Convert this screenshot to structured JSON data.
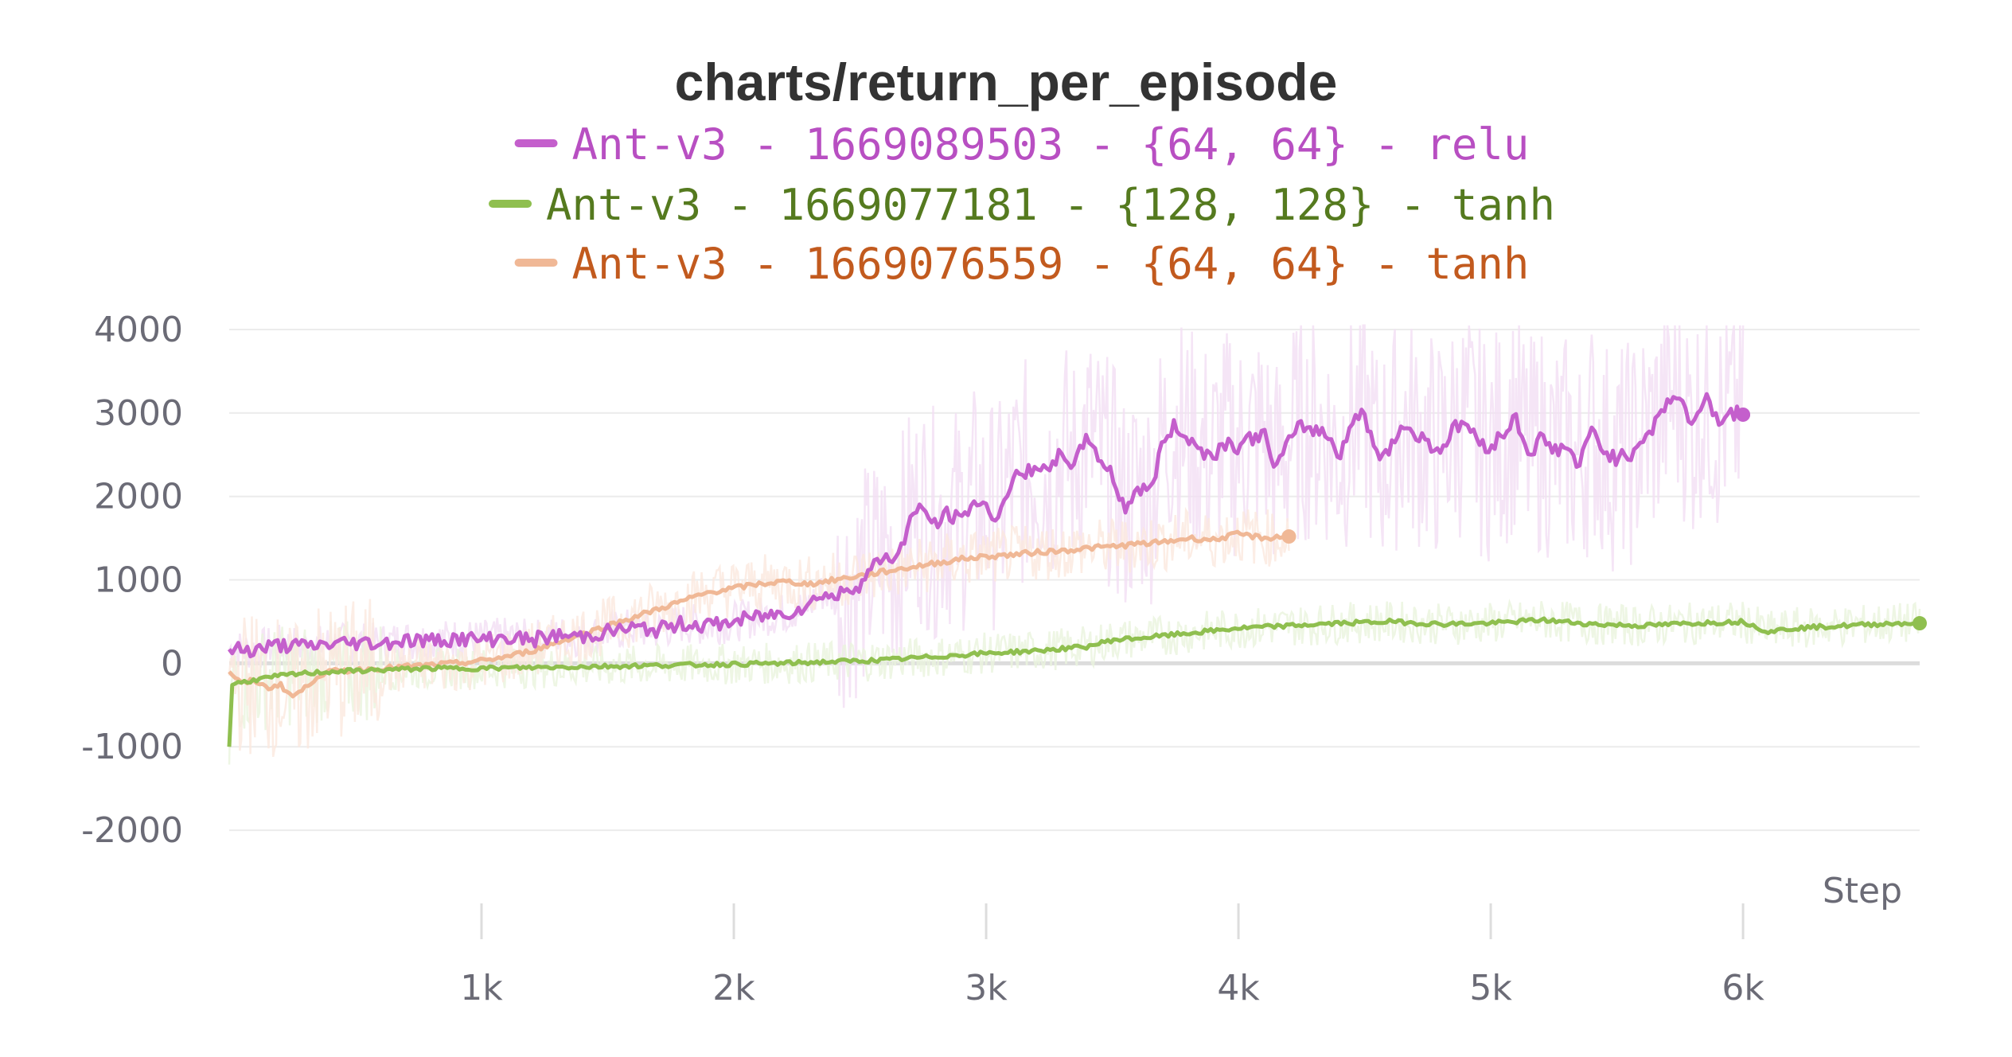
{
  "chart_data": {
    "type": "line",
    "title": "charts/return_per_episode",
    "xlabel": "Step",
    "ylabel": "",
    "xlim": [
      0,
      6700
    ],
    "ylim": [
      -2400,
      4000
    ],
    "x_ticks": [
      1000,
      2000,
      3000,
      4000,
      5000,
      6000
    ],
    "x_tick_labels": [
      "1k",
      "2k",
      "3k",
      "4k",
      "5k",
      "6k"
    ],
    "y_ticks": [
      4000,
      3000,
      2000,
      1000,
      0,
      -1000,
      -2000
    ],
    "y_tick_labels": [
      "4000",
      "3000",
      "2000",
      "1000",
      "0",
      "-1000",
      "-2000"
    ],
    "grid": true,
    "legend_position": "top-center",
    "series": [
      {
        "name": "Ant-v3 - 1669089503 - {64, 64} - relu",
        "color": "#c45fcc",
        "text_color": "#b84fc2",
        "raw_color": "#f2def4",
        "x": [
          0,
          100,
          200,
          300,
          400,
          500,
          600,
          700,
          800,
          900,
          1000,
          1100,
          1200,
          1300,
          1400,
          1500,
          1600,
          1700,
          1800,
          1900,
          2000,
          2100,
          2200,
          2300,
          2350,
          2400,
          2450,
          2500,
          2550,
          2600,
          2650,
          2700,
          2750,
          2800,
          2850,
          2900,
          2950,
          3000,
          3050,
          3100,
          3150,
          3200,
          3250,
          3300,
          3350,
          3400,
          3450,
          3500,
          3550,
          3600,
          3650,
          3700,
          3750,
          3800,
          3850,
          3900,
          3950,
          4000,
          4050,
          4100,
          4150,
          4200,
          4250,
          4300,
          4350,
          4400,
          4450,
          4500,
          4550,
          4600,
          4650,
          4700,
          4750,
          4800,
          4850,
          4900,
          4950,
          5000,
          5050,
          5100,
          5150,
          5200,
          5250,
          5300,
          5350,
          5400,
          5450,
          5500,
          5550,
          5600,
          5650,
          5700,
          5750,
          5800,
          5850,
          5900,
          5950,
          6000
        ],
        "values": [
          170,
          160,
          220,
          200,
          230,
          250,
          240,
          280,
          270,
          300,
          280,
          310,
          280,
          330,
          320,
          380,
          420,
          400,
          480,
          450,
          500,
          560,
          600,
          700,
          850,
          780,
          900,
          950,
          1150,
          1300,
          1250,
          1750,
          1850,
          1650,
          1800,
          1700,
          1950,
          1850,
          1750,
          2200,
          2250,
          2400,
          2250,
          2550,
          2350,
          2750,
          2450,
          2250,
          1850,
          2100,
          2050,
          2650,
          2850,
          2700,
          2550,
          2500,
          2650,
          2600,
          2700,
          2750,
          2350,
          2650,
          2850,
          2800,
          2750,
          2500,
          2900,
          3000,
          2450,
          2600,
          2850,
          2750,
          2650,
          2550,
          2800,
          2900,
          2650,
          2600,
          2750,
          2950,
          2500,
          2700,
          2550,
          2600,
          2350,
          2800,
          2550,
          2450,
          2500,
          2700,
          2850,
          3150,
          3200,
          2800,
          3250,
          2900,
          3000,
          2980
        ]
      },
      {
        "name": "Ant-v3 - 1669077181 - {128, 128} - tanh",
        "color": "#8fbf4f",
        "text_color": "#557a1f",
        "raw_color": "#eaf4dd",
        "x": [
          0,
          10,
          100,
          200,
          300,
          400,
          500,
          600,
          700,
          800,
          900,
          1000,
          1200,
          1400,
          1600,
          1800,
          2000,
          2200,
          2400,
          2600,
          2800,
          3000,
          3200,
          3400,
          3500,
          3600,
          3800,
          4000,
          4200,
          4400,
          4600,
          4800,
          5000,
          5200,
          5400,
          5600,
          5800,
          6000,
          6100,
          6200,
          6400,
          6600,
          6700
        ],
        "values": [
          -1000,
          -250,
          -200,
          -150,
          -120,
          -100,
          -90,
          -80,
          -70,
          -60,
          -60,
          -60,
          -50,
          -40,
          -30,
          -20,
          -10,
          0,
          20,
          40,
          80,
          120,
          150,
          200,
          280,
          300,
          360,
          420,
          450,
          480,
          500,
          470,
          480,
          520,
          470,
          450,
          480,
          500,
          380,
          420,
          450,
          480,
          480
        ]
      },
      {
        "name": "Ant-v3 - 1669076559 - {64, 64} - tanh",
        "color": "#f0b896",
        "text_color": "#c25a1e",
        "raw_color": "#fbe9df",
        "x": [
          0,
          50,
          100,
          150,
          200,
          250,
          300,
          350,
          400,
          500,
          600,
          700,
          800,
          900,
          1000,
          1100,
          1200,
          1300,
          1400,
          1500,
          1600,
          1700,
          1800,
          1900,
          2000,
          2100,
          2200,
          2300,
          2400,
          2500,
          2600,
          2700,
          2800,
          2900,
          3000,
          3100,
          3200,
          3300,
          3400,
          3500,
          3600,
          3700,
          3800,
          3900,
          4000,
          4100,
          4200
        ],
        "values": [
          -100,
          -250,
          -200,
          -300,
          -250,
          -400,
          -300,
          -150,
          -100,
          -80,
          -60,
          -40,
          -20,
          0,
          30,
          80,
          150,
          250,
          350,
          450,
          550,
          650,
          750,
          850,
          900,
          950,
          980,
          950,
          1000,
          1050,
          1100,
          1150,
          1200,
          1250,
          1280,
          1300,
          1330,
          1350,
          1380,
          1400,
          1430,
          1450,
          1500,
          1480,
          1550,
          1500,
          1520
        ]
      }
    ]
  }
}
